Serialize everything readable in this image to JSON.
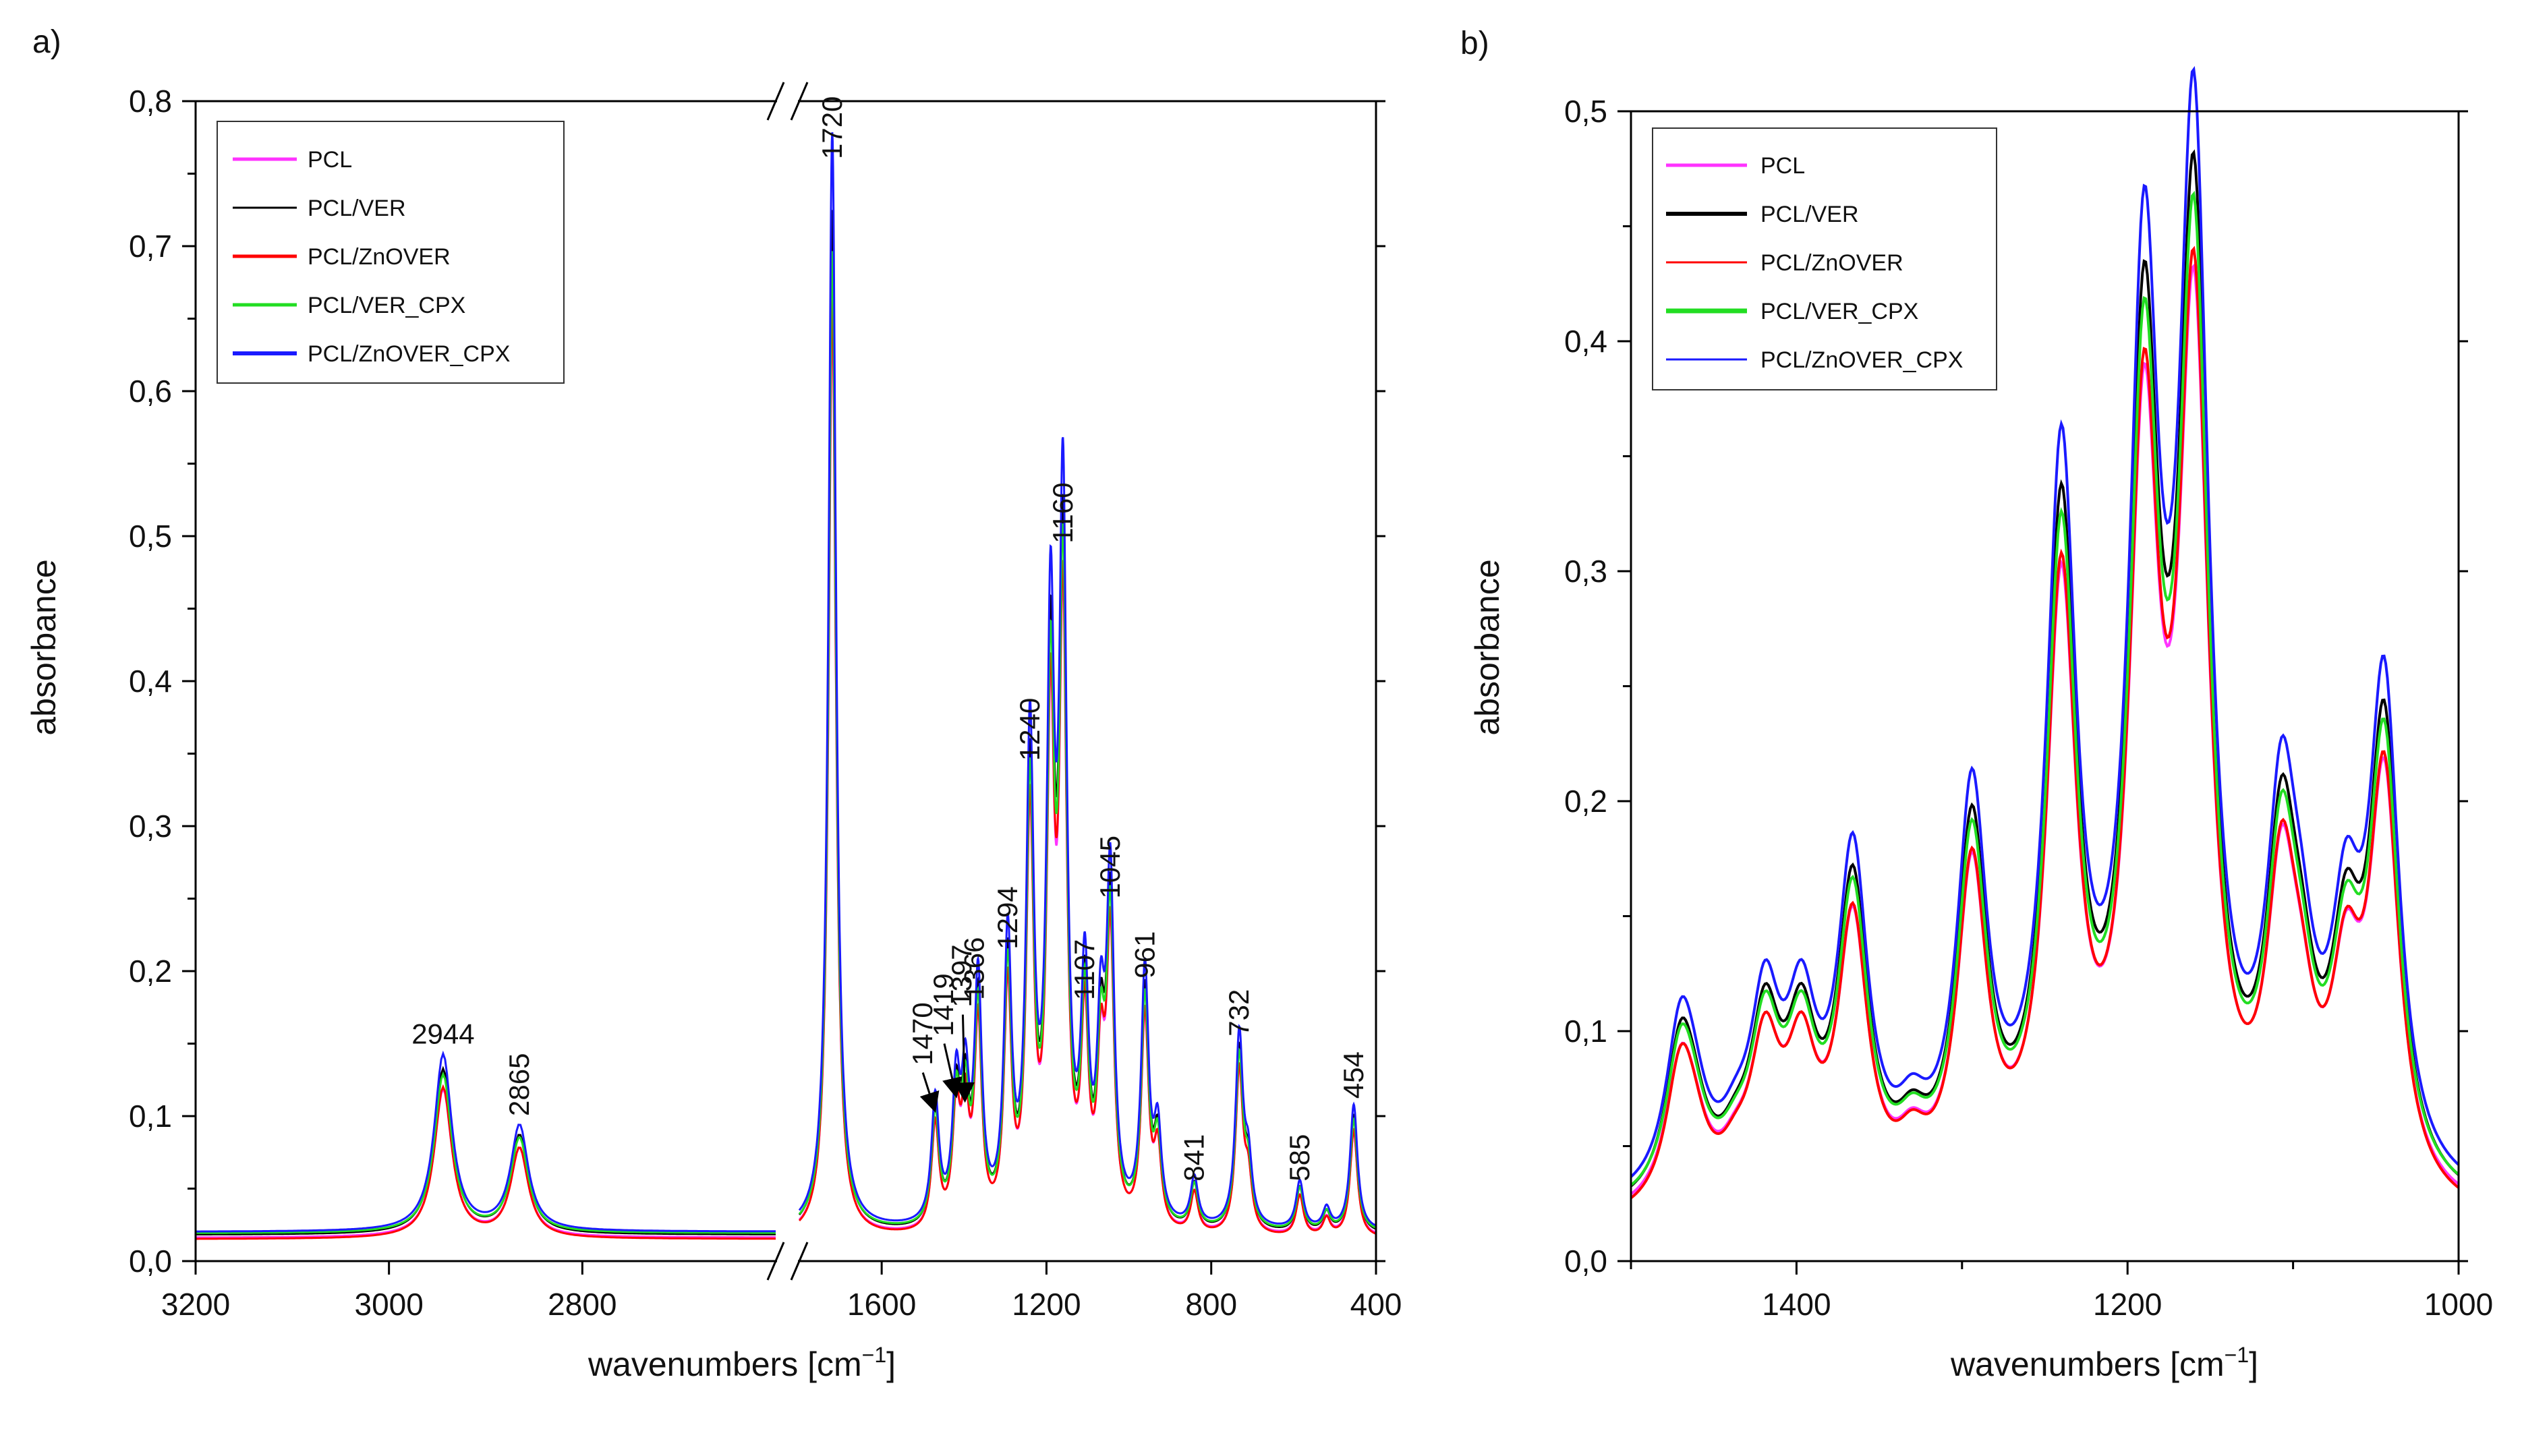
{
  "figure": {
    "colors": {
      "PCL": "#ff33ff",
      "PCL/VER": "#000000",
      "PCL/ZnOVER": "#ff0000",
      "PCL/VER_CPX": "#22dd22",
      "PCL/ZnOVER_CPX": "#1a1aff"
    }
  },
  "chart_data": [
    {
      "panel_label": "a)",
      "type": "line",
      "title": "",
      "xlabel_main": "wavenumbers [cm",
      "xlabel_sup": "−1",
      "xlabel_end": "]",
      "ylabel": "absorbance",
      "ylim": [
        0.0,
        0.8
      ],
      "yticks": [
        "0,0",
        "0,1",
        "0,2",
        "0,3",
        "0,4",
        "0,5",
        "0,6",
        "0,7",
        "0,8"
      ],
      "x_segments": [
        {
          "xlim": [
            3200,
            2600
          ],
          "xticks": [
            "3200",
            "3000",
            "2800"
          ],
          "tick_values": [
            3200,
            3000,
            2800
          ]
        },
        {
          "xlim": [
            1800,
            400
          ],
          "xticks": [
            "1600",
            "1200",
            "800",
            "400"
          ],
          "tick_values": [
            1600,
            1200,
            800,
            400
          ]
        }
      ],
      "axis_break": true,
      "legend": [
        "PCL",
        "PCL/VER",
        "PCL/ZnOVER",
        "PCL/VER_CPX",
        "PCL/ZnOVER_CPX"
      ],
      "legend_position": "top-left",
      "peaks": [
        {
          "x": 2944,
          "y": 0.018,
          "height": 0.118
        },
        {
          "x": 2865,
          "y": 0.018,
          "height": 0.07
        },
        {
          "x": 1720,
          "y": 0.022,
          "height": 0.735
        },
        {
          "x": 1470,
          "y": 0.02,
          "height": 0.083
        },
        {
          "x": 1419,
          "y": 0.02,
          "height": 0.088
        },
        {
          "x": 1397,
          "y": 0.02,
          "height": 0.085
        },
        {
          "x": 1366,
          "y": 0.02,
          "height": 0.158
        },
        {
          "x": 1294,
          "y": 0.02,
          "height": 0.186
        },
        {
          "x": 1240,
          "y": 0.02,
          "height": 0.318
        },
        {
          "x": 1190,
          "y": 0.02,
          "height": 0.38
        },
        {
          "x": 1160,
          "y": 0.02,
          "height": 0.468
        },
        {
          "x": 1107,
          "y": 0.02,
          "height": 0.155
        },
        {
          "x": 1068,
          "y": 0.02,
          "height": 0.116
        },
        {
          "x": 1045,
          "y": 0.02,
          "height": 0.222
        },
        {
          "x": 961,
          "y": 0.02,
          "height": 0.167
        },
        {
          "x": 930,
          "y": 0.02,
          "height": 0.06
        },
        {
          "x": 841,
          "y": 0.02,
          "height": 0.032
        },
        {
          "x": 732,
          "y": 0.02,
          "height": 0.127
        },
        {
          "x": 710,
          "y": 0.02,
          "height": 0.04
        },
        {
          "x": 585,
          "y": 0.02,
          "height": 0.032
        },
        {
          "x": 520,
          "y": 0.02,
          "height": 0.014
        },
        {
          "x": 454,
          "y": 0.02,
          "height": 0.084
        }
      ],
      "series": [
        {
          "name": "PCL",
          "scale": 0.86,
          "offset": -0.002
        },
        {
          "name": "PCL/VER",
          "scale": 0.96,
          "offset": 0.0
        },
        {
          "name": "PCL/ZnOVER",
          "scale": 0.88,
          "offset": -0.003
        },
        {
          "name": "PCL/VER_CPX",
          "scale": 0.92,
          "offset": 0.001
        },
        {
          "name": "PCL/ZnOVER_CPX",
          "scale": 1.03,
          "offset": 0.002
        }
      ],
      "annotations": [
        {
          "text": "2944",
          "x": 2944,
          "y": 0.15
        },
        {
          "text": "2865",
          "x": 2865,
          "y": 0.1
        },
        {
          "text": "1720",
          "x": 1720,
          "y": 0.76
        },
        {
          "text": "1470",
          "x": 1500,
          "y": 0.135
        },
        {
          "text": "1419",
          "x": 1450,
          "y": 0.155
        },
        {
          "text": "1397",
          "x": 1405,
          "y": 0.175
        },
        {
          "text": "1366",
          "x": 1375,
          "y": 0.18
        },
        {
          "text": "1294",
          "x": 1294,
          "y": 0.215
        },
        {
          "text": "1240",
          "x": 1240,
          "y": 0.345
        },
        {
          "text": "1160",
          "x": 1160,
          "y": 0.495
        },
        {
          "text": "1107",
          "x": 1107,
          "y": 0.18
        },
        {
          "text": "1045",
          "x": 1045,
          "y": 0.25
        },
        {
          "text": "961",
          "x": 961,
          "y": 0.195
        },
        {
          "text": "841",
          "x": 841,
          "y": 0.055
        },
        {
          "text": "732",
          "x": 732,
          "y": 0.155
        },
        {
          "text": "585",
          "x": 585,
          "y": 0.055
        },
        {
          "text": "454",
          "x": 454,
          "y": 0.112
        }
      ],
      "arrows": [
        {
          "from": [
            1500,
            0.13
          ],
          "to": [
            1472,
            0.105
          ]
        },
        {
          "from": [
            1448,
            0.15
          ],
          "to": [
            1420,
            0.115
          ]
        },
        {
          "from": [
            1403,
            0.17
          ],
          "to": [
            1398,
            0.112
          ]
        }
      ]
    },
    {
      "panel_label": "b)",
      "type": "line",
      "title": "",
      "xlabel_main": "wavenumbers [cm",
      "xlabel_sup": "−1",
      "xlabel_end": "]",
      "ylabel": "absorbance",
      "xlim": [
        1500,
        1000
      ],
      "xticks": [
        "1400",
        "1200",
        "1000"
      ],
      "xtick_values": [
        1400,
        1200,
        1000
      ],
      "ylim": [
        0.0,
        0.5
      ],
      "yticks": [
        "0,0",
        "0,1",
        "0,2",
        "0,3",
        "0,4",
        "0,5"
      ],
      "legend": [
        "PCL",
        "PCL/VER",
        "PCL/ZnOVER",
        "PCL/VER_CPX",
        "PCL/ZnOVER_CPX"
      ],
      "legend_position": "top-left",
      "peaks": [
        {
          "x": 1470,
          "y": 0.02,
          "height": 0.065
        },
        {
          "x": 1462,
          "y": 0.02,
          "height": 0.02
        },
        {
          "x": 1437,
          "y": 0.02,
          "height": 0.015
        },
        {
          "x": 1419,
          "y": 0.02,
          "height": 0.073
        },
        {
          "x": 1397,
          "y": 0.02,
          "height": 0.066
        },
        {
          "x": 1366,
          "y": 0.02,
          "height": 0.135
        },
        {
          "x": 1330,
          "y": 0.02,
          "height": 0.02
        },
        {
          "x": 1294,
          "y": 0.02,
          "height": 0.158
        },
        {
          "x": 1240,
          "y": 0.02,
          "height": 0.292
        },
        {
          "x": 1190,
          "y": 0.02,
          "height": 0.355
        },
        {
          "x": 1160,
          "y": 0.02,
          "height": 0.414
        },
        {
          "x": 1107,
          "y": 0.02,
          "height": 0.135
        },
        {
          "x": 1095,
          "y": 0.02,
          "height": 0.05
        },
        {
          "x": 1068,
          "y": 0.02,
          "height": 0.09
        },
        {
          "x": 1045,
          "y": 0.02,
          "height": 0.2
        }
      ],
      "series": [
        {
          "name": "PCL",
          "scale": 0.88,
          "offset": -0.002
        },
        {
          "name": "PCL/VER",
          "scale": 0.98,
          "offset": 0.0
        },
        {
          "name": "PCL/ZnOVER",
          "scale": 0.9,
          "offset": -0.004
        },
        {
          "name": "PCL/VER_CPX",
          "scale": 0.94,
          "offset": 0.001
        },
        {
          "name": "PCL/ZnOVER_CPX",
          "scale": 1.05,
          "offset": 0.003
        }
      ]
    }
  ]
}
